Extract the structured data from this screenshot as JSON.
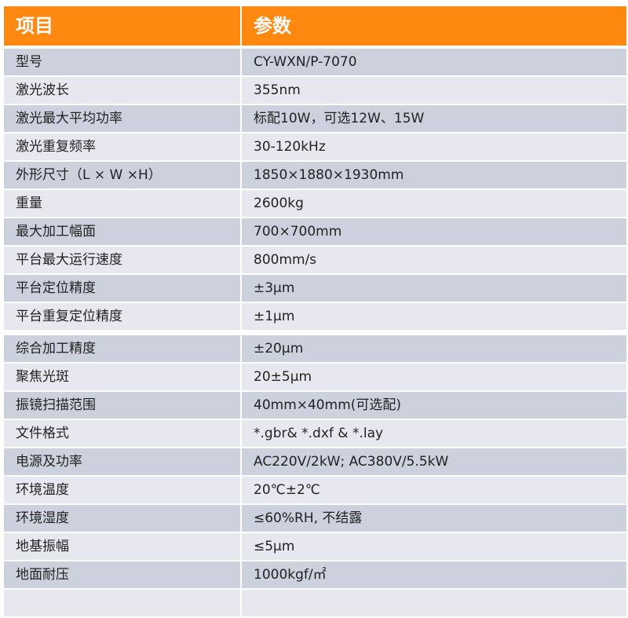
{
  "header": {
    "item": "项目",
    "param": "参数"
  },
  "rows": [
    {
      "k": "型号",
      "v": "CY-WXN/P-7070"
    },
    {
      "k": "激光波长",
      "v": "355nm"
    },
    {
      "k": "激光最大平均功率",
      "v": "标配10W，可选12W、15W"
    },
    {
      "k": "激光重复频率",
      "v": "30-120kHz"
    },
    {
      "k": "外形尺寸（L × W ×H）",
      "v": "1850×1880×1930mm"
    },
    {
      "k": "重量",
      "v": "2600kg"
    },
    {
      "k": "最大加工幅面",
      "v": "700×700mm"
    },
    {
      "k": "平台最大运行速度",
      "v": "800mm/s"
    },
    {
      "k": "平台定位精度",
      "v": "±3μm"
    },
    {
      "k": "平台重复定位精度",
      "v": "±1μm"
    },
    {
      "k": "综合加工精度",
      "v": "±20μm"
    },
    {
      "k": "聚焦光斑",
      "v": "20±5μm"
    },
    {
      "k": "振镜扫描范围",
      "v": "40mm×40mm(可选配)"
    },
    {
      "k": "文件格式",
      "v": "*.gbr& *.dxf & *.lay"
    },
    {
      "k": "电源及功率",
      "v": "AC220V/2kW; AC380V/5.5kW"
    },
    {
      "k": "环境温度",
      "v": "20℃±2℃"
    },
    {
      "k": "环境湿度",
      "v": "≤60%RH, 不结露"
    },
    {
      "k": "地基振幅",
      "v": "≤5μm"
    },
    {
      "k": "地面耐压",
      "v": "1000kgf/㎡"
    },
    {
      "k": "",
      "v": ""
    }
  ],
  "colors": {
    "header": "#ff8811",
    "row_dark": "#cdd1dd",
    "row_light": "#e7e8ef"
  }
}
